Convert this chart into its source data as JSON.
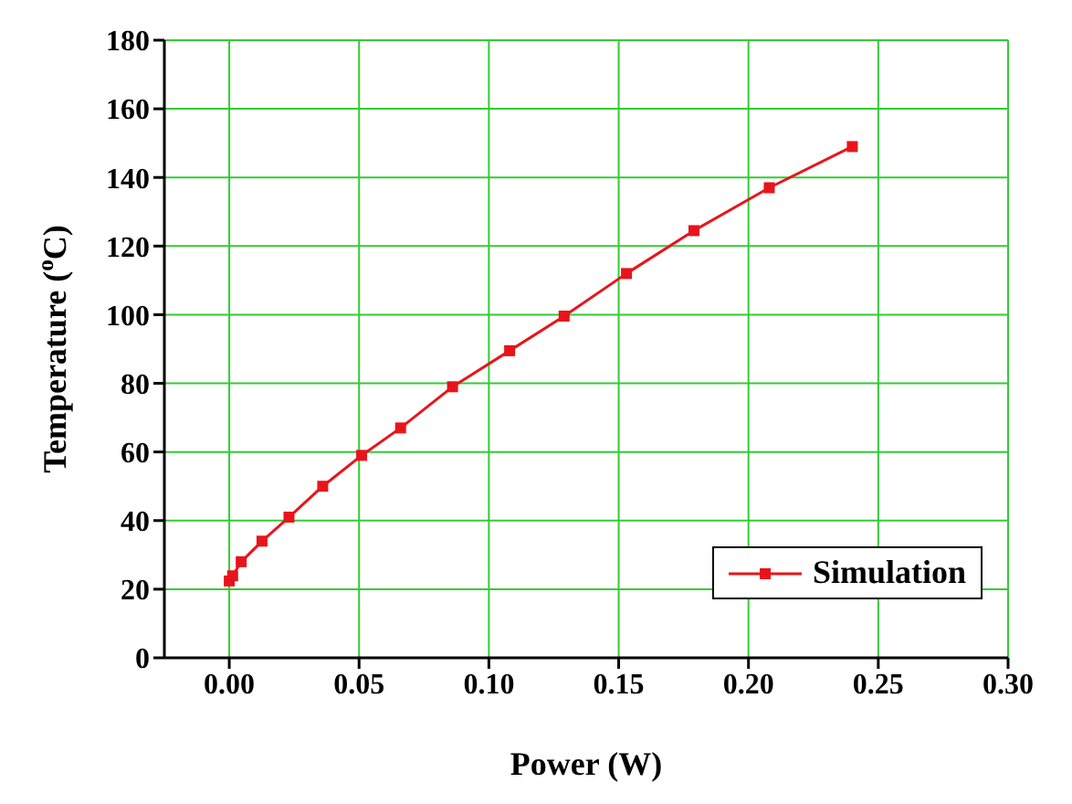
{
  "chart_data": {
    "type": "line",
    "xlabel": "Power (W)",
    "ylabel": "Temperature ($^{o}$C)",
    "x": [
      0,
      0.0013,
      0.0046,
      0.0126,
      0.023,
      0.036,
      0.051,
      0.066,
      0.086,
      0.108,
      0.129,
      0.153,
      0.179,
      0.208,
      0.24
    ],
    "series": [
      {
        "name": "Simulation",
        "color": "#e8141b",
        "values": [
          22.4,
          23.9,
          28,
          34,
          41,
          50,
          59,
          67,
          79,
          89.5,
          99.6,
          112,
          124.5,
          137,
          149
        ]
      }
    ],
    "xlim": [
      -0.025,
      0.3
    ],
    "xticks": [
      {
        "value": 0,
        "label": "0.00"
      },
      {
        "value": 0.05,
        "label": "0.05"
      },
      {
        "value": 0.1,
        "label": "0.10"
      },
      {
        "value": 0.15,
        "label": "0.15"
      },
      {
        "value": 0.2,
        "label": "0.20"
      },
      {
        "value": 0.25,
        "label": "0.25"
      },
      {
        "value": 0.3,
        "label": "0.30"
      }
    ],
    "ylim": [
      0,
      180
    ],
    "yticks": [
      0,
      20,
      40,
      60,
      80,
      100,
      120,
      140,
      160,
      180
    ],
    "grid": true,
    "legend": "bottom right",
    "marker": "square",
    "line_style": "solid"
  }
}
